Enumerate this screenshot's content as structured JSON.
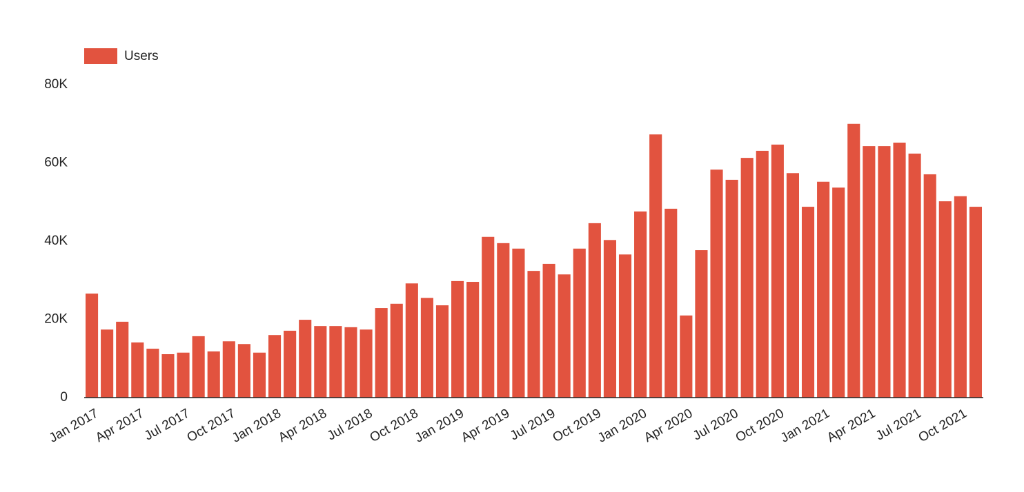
{
  "chart_data": {
    "type": "bar",
    "categories": [
      "Jan 2017",
      null,
      null,
      "Apr 2017",
      null,
      null,
      "Jul 2017",
      null,
      null,
      "Oct 2017",
      null,
      null,
      "Jan 2018",
      null,
      null,
      "Apr 2018",
      null,
      null,
      "Jul 2018",
      null,
      null,
      "Oct 2018",
      null,
      null,
      "Jan 2019",
      null,
      null,
      "Apr 2019",
      null,
      null,
      "Jul 2019",
      null,
      null,
      "Oct 2019",
      null,
      null,
      "Jan 2020",
      null,
      null,
      "Apr 2020",
      null,
      null,
      "Jul 2020",
      null,
      null,
      "Oct 2020",
      null,
      null,
      "Jan 2021",
      null,
      null,
      "Apr 2021",
      null,
      null,
      "Jul 2021",
      null,
      null,
      "Oct 2021",
      null
    ],
    "series": [
      {
        "name": "Users",
        "color": "#e2533f",
        "values": [
          26600,
          17400,
          19400,
          14100,
          12500,
          11100,
          11500,
          15700,
          11800,
          14400,
          13700,
          11500,
          16000,
          17100,
          19900,
          18300,
          18300,
          18000,
          17400,
          22900,
          24000,
          29200,
          25500,
          23600,
          29800,
          29600,
          41100,
          39500,
          38100,
          32400,
          34200,
          31500,
          38100,
          44600,
          40300,
          36600,
          47600,
          67300,
          48300,
          21000,
          37700,
          58300,
          55700,
          61300,
          63100,
          64700,
          57400,
          48800,
          55200,
          53700,
          70000,
          64300,
          64300,
          65200,
          62400,
          57100,
          50200,
          51500,
          48800
        ]
      }
    ],
    "ylim": [
      0,
      80000
    ],
    "yticks": [
      0,
      {
        "value": 20000,
        "label": "20K"
      },
      {
        "value": 40000,
        "label": "40K"
      },
      {
        "value": 60000,
        "label": "60K"
      },
      {
        "value": 80000,
        "label": "80K"
      }
    ],
    "grid": false,
    "legend": "top-left"
  }
}
